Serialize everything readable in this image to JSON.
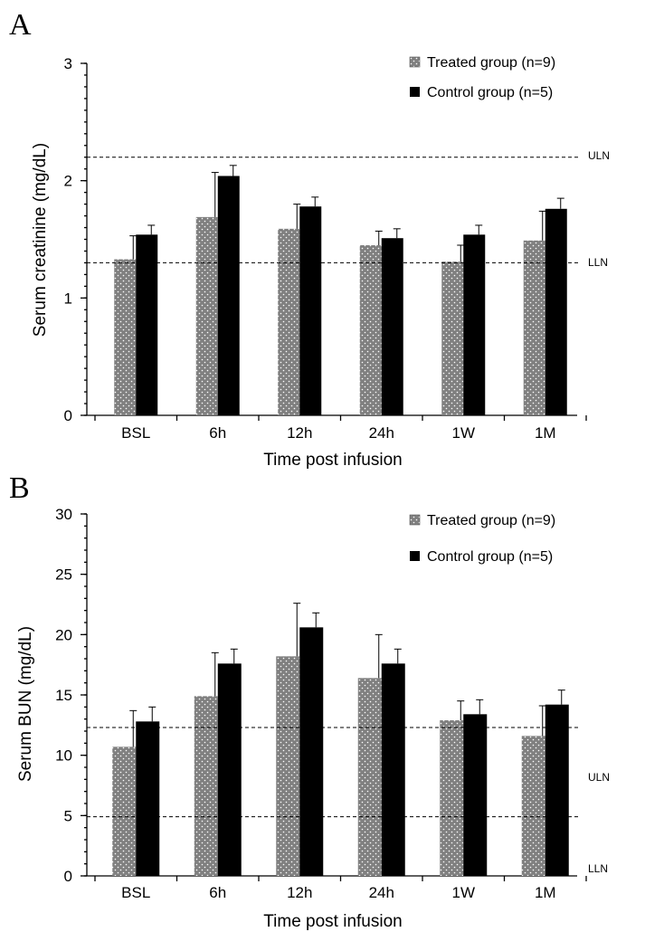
{
  "chart_data": [
    {
      "panel": "A",
      "type": "bar",
      "categories": [
        "BSL",
        "6h",
        "12h",
        "24h",
        "1W",
        "1M"
      ],
      "series": [
        {
          "name": "Treated group (n=9)",
          "values": [
            1.33,
            1.69,
            1.59,
            1.45,
            1.31,
            1.49
          ],
          "error": [
            0.2,
            0.38,
            0.21,
            0.12,
            0.14,
            0.25
          ],
          "color": "#7f7f7f",
          "pattern": "dotted"
        },
        {
          "name": "Control group (n=5)",
          "values": [
            1.54,
            2.04,
            1.78,
            1.51,
            1.54,
            1.76
          ],
          "error": [
            0.08,
            0.09,
            0.08,
            0.08,
            0.08,
            0.09
          ],
          "color": "#000000",
          "pattern": "solid"
        }
      ],
      "reference_lines": [
        {
          "label": "ULN",
          "value": 2.2
        },
        {
          "label": "LLN",
          "value": 1.3
        }
      ],
      "ylim": [
        0,
        3
      ],
      "yticks": [
        0,
        1,
        2,
        3
      ],
      "minor_tick_step": 0.1,
      "xlabel": "Time  post infusion",
      "ylabel": "Serum creatinine (mg/dL)",
      "legend_position": "top-right",
      "grid": false
    },
    {
      "panel": "B",
      "type": "bar",
      "categories": [
        "BSL",
        "6h",
        "12h",
        "24h",
        "1W",
        "1M"
      ],
      "series": [
        {
          "name": "Treated group (n=9)",
          "values": [
            10.7,
            14.9,
            18.2,
            16.4,
            12.9,
            11.6
          ],
          "error": [
            3.0,
            3.6,
            4.4,
            3.6,
            1.6,
            2.5
          ],
          "color": "#7f7f7f",
          "pattern": "dotted"
        },
        {
          "name": "Control group (n=5)",
          "values": [
            12.8,
            17.6,
            20.6,
            17.6,
            13.4,
            14.2
          ],
          "error": [
            1.2,
            1.2,
            1.2,
            1.2,
            1.2,
            1.2
          ],
          "color": "#000000",
          "pattern": "solid"
        }
      ],
      "reference_lines": [
        {
          "label": "ULN",
          "value": 12.3
        },
        {
          "label": "LLN",
          "value": 4.9
        }
      ],
      "ylim": [
        0,
        30
      ],
      "yticks": [
        0,
        5,
        10,
        15,
        20,
        25,
        30
      ],
      "minor_tick_step": 1,
      "xlabel": "Time  post infusion",
      "ylabel": "Serum BUN (mg/dL)",
      "legend_position": "top-right",
      "grid": false
    }
  ]
}
